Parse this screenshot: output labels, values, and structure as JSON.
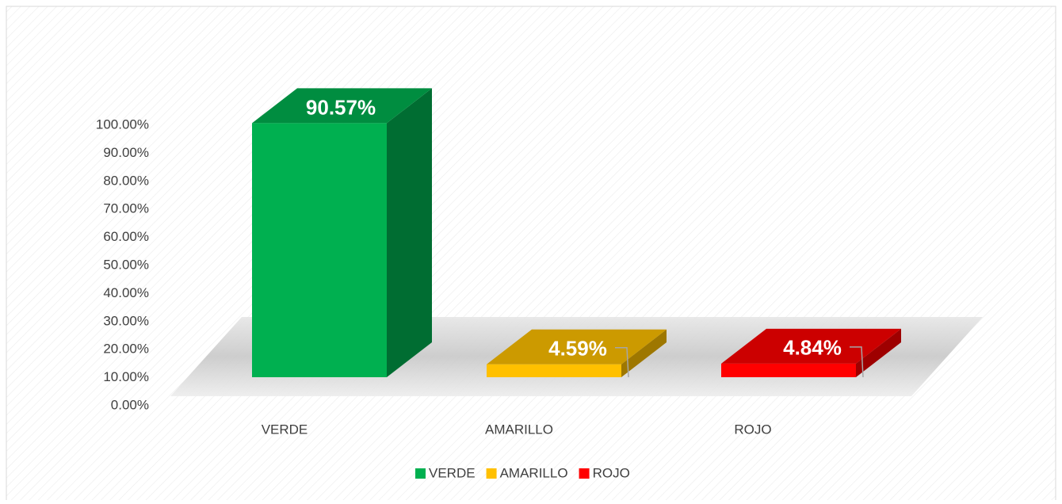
{
  "chart_data": {
    "type": "bar3d",
    "categories": [
      "VERDE",
      "AMARILLO",
      "ROJO"
    ],
    "values": [
      90.57,
      4.59,
      4.84
    ],
    "value_labels": [
      "90.57%",
      "4.59%",
      "4.84%"
    ],
    "colors": [
      "#00b050",
      "#ffc000",
      "#ff0000"
    ],
    "ylim": [
      0,
      100
    ],
    "yticks": [
      {
        "value": 0,
        "label": "0.00%"
      },
      {
        "value": 10,
        "label": "10.00%"
      },
      {
        "value": 20,
        "label": "20.00%"
      },
      {
        "value": 30,
        "label": "30.00%"
      },
      {
        "value": 40,
        "label": "40.00%"
      },
      {
        "value": 50,
        "label": "50.00%"
      },
      {
        "value": 60,
        "label": "60.00%"
      },
      {
        "value": 70,
        "label": "70.00%"
      },
      {
        "value": 80,
        "label": "80.00%"
      },
      {
        "value": 90,
        "label": "90.00%"
      },
      {
        "value": 100,
        "label": "100.00%"
      }
    ],
    "legend": "bottom"
  }
}
